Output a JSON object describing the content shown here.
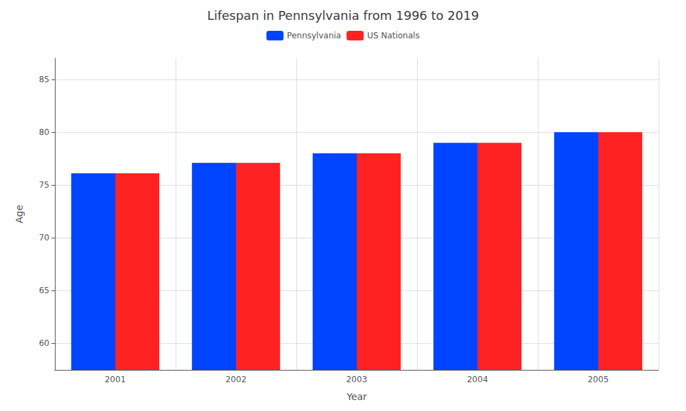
{
  "chart_data": {
    "type": "bar",
    "title": "Lifespan in Pennsylvania from 1996 to 2019",
    "xlabel": "Year",
    "ylabel": "Age",
    "categories": [
      "2001",
      "2002",
      "2003",
      "2004",
      "2005"
    ],
    "series": [
      {
        "name": "Pennsylvania",
        "color": "#0044ff",
        "values": [
          76.1,
          77.1,
          78.0,
          79.0,
          80.0
        ]
      },
      {
        "name": "US Nationals",
        "color": "#ff2222",
        "values": [
          76.1,
          77.1,
          78.0,
          79.0,
          80.0
        ]
      }
    ],
    "ylim": [
      57.5,
      87
    ],
    "yticks": [
      60,
      65,
      70,
      75,
      80,
      85
    ],
    "grid": true,
    "legend": "top"
  }
}
